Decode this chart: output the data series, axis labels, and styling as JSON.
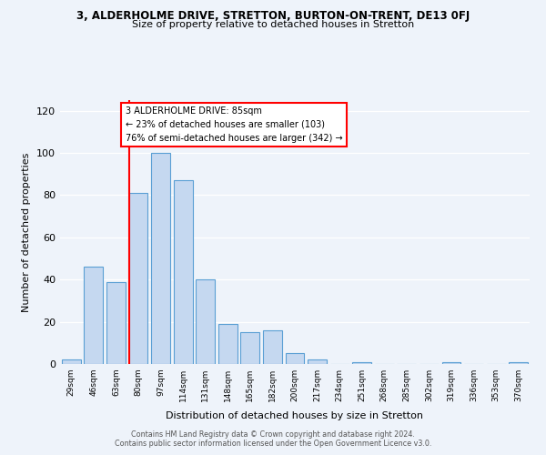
{
  "title": "3, ALDERHOLME DRIVE, STRETTON, BURTON-ON-TRENT, DE13 0FJ",
  "subtitle": "Size of property relative to detached houses in Stretton",
  "xlabel": "Distribution of detached houses by size in Stretton",
  "ylabel": "Number of detached properties",
  "bar_labels": [
    "29sqm",
    "46sqm",
    "63sqm",
    "80sqm",
    "97sqm",
    "114sqm",
    "131sqm",
    "148sqm",
    "165sqm",
    "182sqm",
    "200sqm",
    "217sqm",
    "234sqm",
    "251sqm",
    "268sqm",
    "285sqm",
    "302sqm",
    "319sqm",
    "336sqm",
    "353sqm",
    "370sqm"
  ],
  "bar_values": [
    2,
    46,
    39,
    81,
    100,
    87,
    40,
    19,
    15,
    16,
    5,
    2,
    0,
    1,
    0,
    0,
    0,
    1,
    0,
    0,
    1
  ],
  "bar_color": "#c5d8f0",
  "bar_edge_color": "#5a9fd4",
  "annotation_lines": [
    "3 ALDERHOLME DRIVE: 85sqm",
    "← 23% of detached houses are smaller (103)",
    "76% of semi-detached houses are larger (342) →"
  ],
  "red_line_bar_index": 3,
  "ylim": [
    0,
    125
  ],
  "yticks": [
    0,
    20,
    40,
    60,
    80,
    100,
    120
  ],
  "footer_line1": "Contains HM Land Registry data © Crown copyright and database right 2024.",
  "footer_line2": "Contains public sector information licensed under the Open Government Licence v3.0.",
  "background_color": "#eef3fa"
}
